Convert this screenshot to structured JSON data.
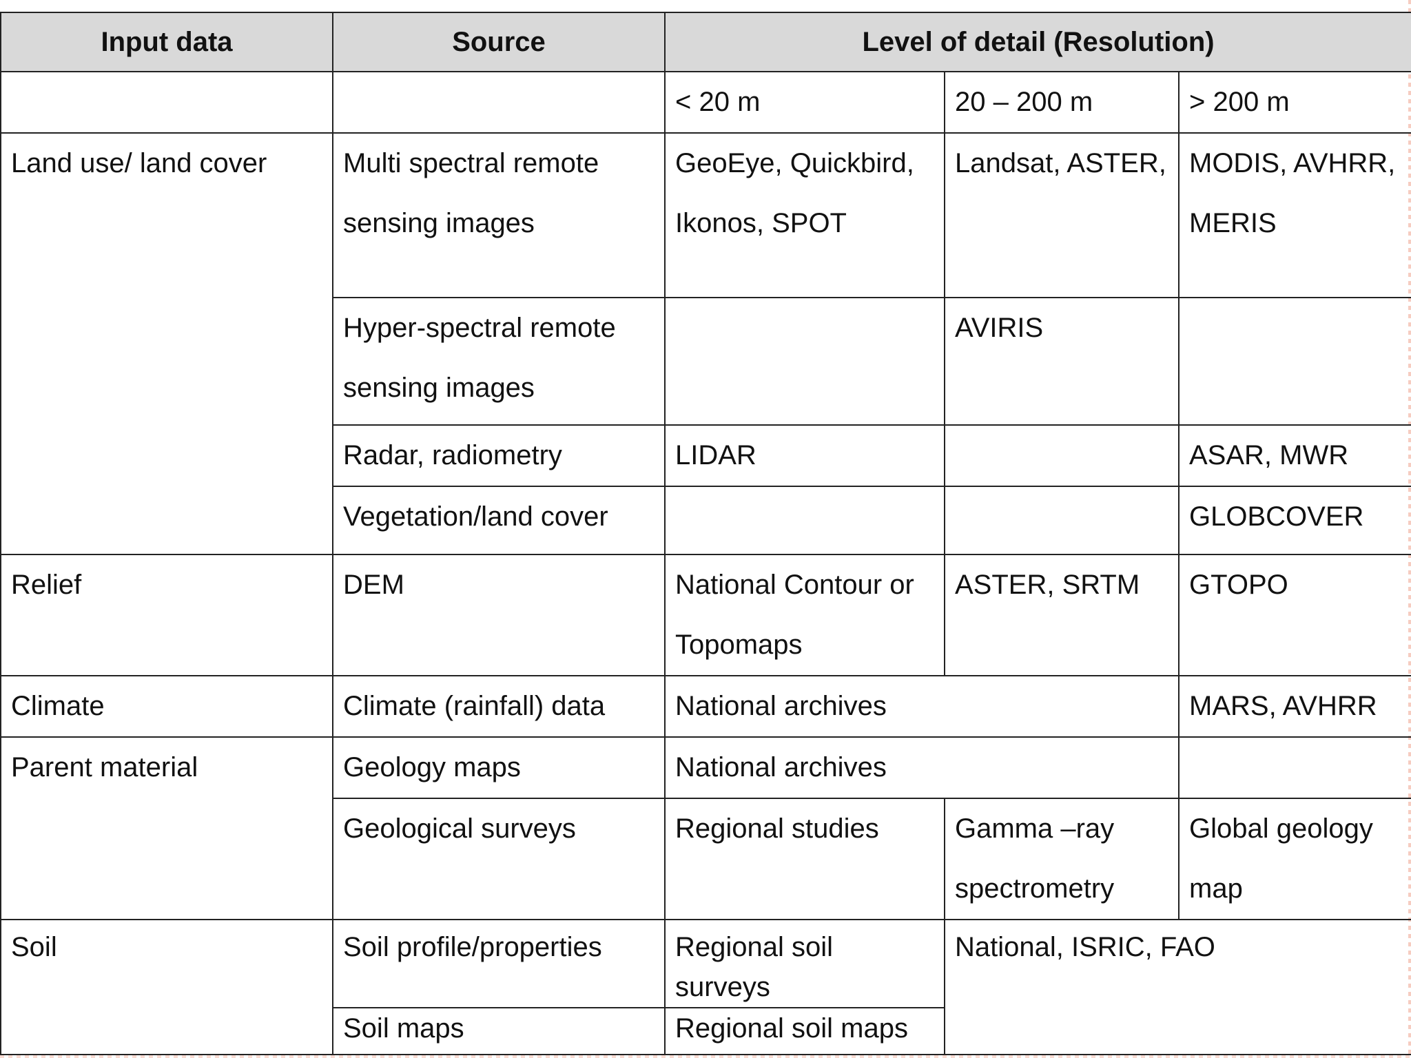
{
  "header": {
    "input_data": "Input data",
    "source": "Source",
    "level_of_detail": "Level of detail (Resolution)"
  },
  "resolution_bands": [
    "< 20 m",
    "20 – 200 m",
    "> 200 m"
  ],
  "rows": {
    "land_use": {
      "input": "Land use/ land cover",
      "multi_source": "Multi spectral remote sensing images",
      "multi_lt20": "GeoEye, Quickbird, Ikonos, SPOT",
      "multi_20_200": "Landsat, ASTER,",
      "multi_gt200": "MODIS, AVHRR, MERIS",
      "hyper_source": "Hyper-spectral remote sensing images",
      "hyper_lt20": "",
      "hyper_20_200": "AVIRIS",
      "hyper_gt200": "",
      "radar_source": "Radar, radiometry",
      "radar_lt20": "LIDAR",
      "radar_20_200": "",
      "radar_gt200": "ASAR, MWR",
      "veg_source": "Vegetation/land cover",
      "veg_lt20": "",
      "veg_20_200": "",
      "veg_gt200": "GLOBCOVER"
    },
    "relief": {
      "input": "Relief",
      "source": "DEM",
      "lt20": "National Contour or Topomaps",
      "r20_200": "ASTER, SRTM",
      "gt200": "GTOPO"
    },
    "climate": {
      "input": "Climate",
      "source": "Climate (rainfall) data",
      "lt200": "National archives",
      "gt200": "MARS, AVHRR"
    },
    "parent_material": {
      "input": "Parent material",
      "geomaps_source": "Geology maps",
      "geomaps_lt200": "National archives",
      "geomaps_gt200": "",
      "surveys_source": "Geological surveys",
      "surveys_lt20": "Regional studies",
      "surveys_20_200": "Gamma –ray spectrometry",
      "surveys_gt200": "Global geology map"
    },
    "soil": {
      "input": "Soil",
      "profile_source": "Soil profile/properties",
      "profile_lt20": "Regional soil surveys",
      "profile_gt20": "National, ISRIC, FAO",
      "maps_source": "Soil maps",
      "maps_lt20": "Regional soil maps"
    }
  }
}
